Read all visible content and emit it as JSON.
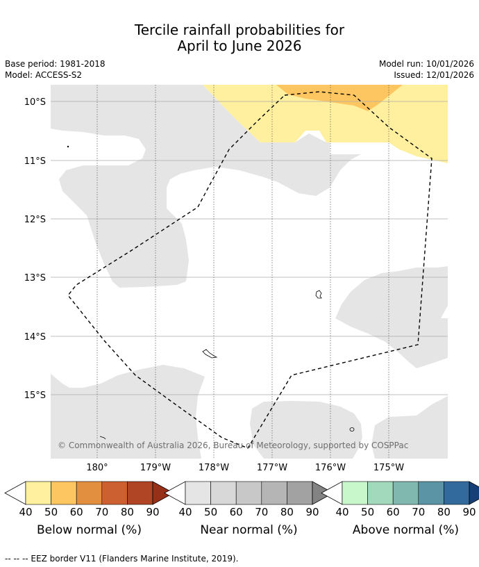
{
  "header": {
    "title_line1": "Tercile rainfall probabilities for",
    "title_line2": "April to June 2026",
    "base_period": "Base period: 1981-2018",
    "model": "Model: ACCESS-S2",
    "model_run": "Model run: 10/01/2026",
    "issued": "Issued: 12/01/2026"
  },
  "map": {
    "lat_labels": [
      "10°S",
      "11°S",
      "12°S",
      "13°S",
      "14°S",
      "15°S"
    ],
    "lon_labels": [
      "180°",
      "179°W",
      "178°W",
      "177°W",
      "176°W",
      "175°W"
    ],
    "copyright": "© Commonwealth of Australia 2026, Bureau of Meteorology, supported by COSPPac"
  },
  "colorbars": [
    {
      "title": "Below normal (%)",
      "ticks": [
        "40",
        "50",
        "60",
        "70",
        "80",
        "90"
      ],
      "colors": [
        "#ffffff",
        "#fff0a0",
        "#fdc660",
        "#e29040",
        "#cd6030",
        "#b04525",
        "#963018"
      ]
    },
    {
      "title": "Near normal (%)",
      "ticks": [
        "40",
        "50",
        "60",
        "70",
        "80",
        "90"
      ],
      "colors": [
        "#ffffff",
        "#e5e5e5",
        "#d8d8d8",
        "#c8c8c8",
        "#b5b5b5",
        "#a2a2a2",
        "#838383"
      ]
    },
    {
      "title": "Above normal (%)",
      "ticks": [
        "40",
        "50",
        "60",
        "70",
        "80",
        "90"
      ],
      "colors": [
        "#ffffff",
        "#c8f7cc",
        "#a2d8bb",
        "#80b8b0",
        "#5b95a5",
        "#336a9d",
        "#163f78"
      ]
    }
  ],
  "footnote": "--  --  -- EEZ border V11 (Flanders Marine Institute, 2019)."
}
